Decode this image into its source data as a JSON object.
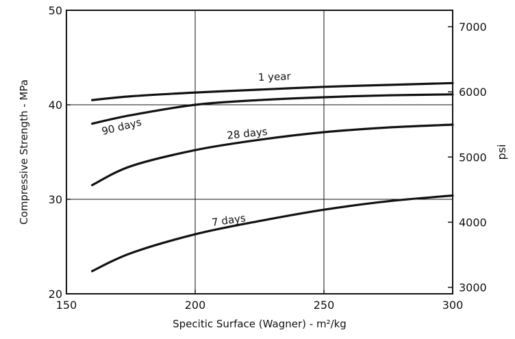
{
  "chart_data": {
    "type": "line",
    "xlabel": "Specitic Surface (Wagner) - m²/kg",
    "ylabel": "Compressive Strength - MPa",
    "y2label": "psi",
    "xlim": [
      150,
      300
    ],
    "ylim": [
      20,
      50
    ],
    "y2lim": [
      2901,
      7252
    ],
    "xticks": [
      "150",
      "200",
      "250",
      "300"
    ],
    "yticks": [
      "20",
      "30",
      "40",
      "50"
    ],
    "y2ticks": [
      "3000",
      "4000",
      "5000",
      "6000",
      "7000"
    ],
    "y2tick_values": [
      3000,
      4000,
      5000,
      6000,
      7000
    ],
    "grid": true,
    "series": [
      {
        "name": "1 year",
        "x": [
          160,
          175,
          200,
          225,
          250,
          275,
          300
        ],
        "values": [
          40.5,
          40.9,
          41.3,
          41.6,
          41.9,
          42.1,
          42.3
        ]
      },
      {
        "name": "90 days",
        "x": [
          160,
          175,
          200,
          225,
          250,
          275,
          300
        ],
        "values": [
          38.0,
          38.9,
          40.0,
          40.5,
          40.8,
          41.0,
          41.1
        ]
      },
      {
        "name": "28 days",
        "x": [
          160,
          175,
          200,
          225,
          250,
          275,
          300
        ],
        "values": [
          31.5,
          33.5,
          35.2,
          36.3,
          37.1,
          37.6,
          37.9
        ]
      },
      {
        "name": "7 days",
        "x": [
          160,
          175,
          200,
          225,
          250,
          275,
          300
        ],
        "values": [
          22.4,
          24.3,
          26.3,
          27.7,
          28.9,
          29.8,
          30.4
        ]
      }
    ]
  }
}
